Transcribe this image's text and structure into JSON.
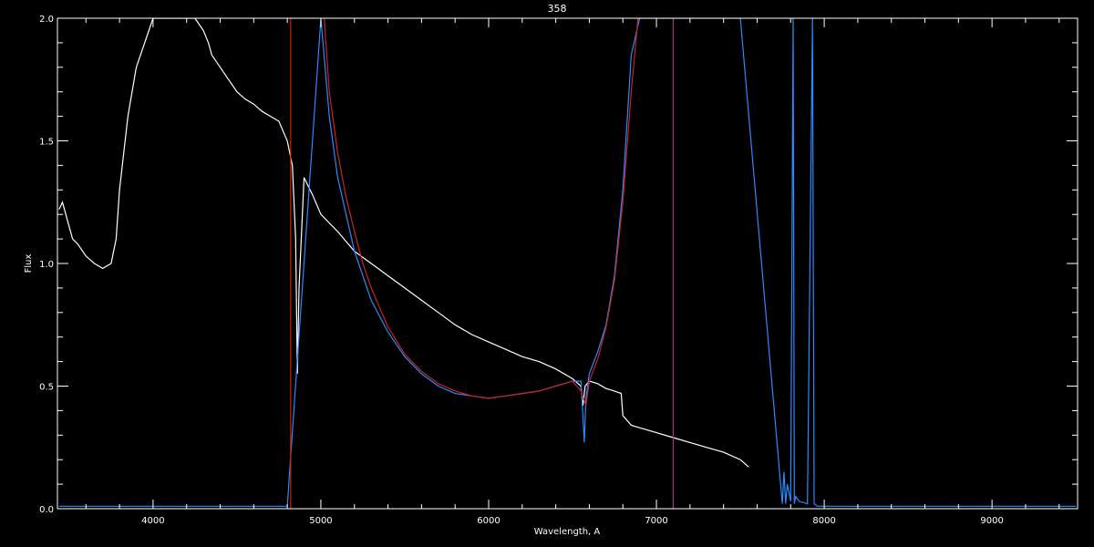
{
  "chart_data": {
    "type": "line",
    "title": "358",
    "xlabel": "Wavelength, A",
    "ylabel": "Flux",
    "xlim": [
      3430,
      9510
    ],
    "ylim": [
      0.0,
      2.0
    ],
    "xticks": [
      4000,
      5000,
      6000,
      7000,
      8000,
      9000
    ],
    "yticks": [
      0.0,
      0.5,
      1.0,
      1.5,
      2.0
    ],
    "ytick_labels": [
      "0.0",
      "0.5",
      "1.0",
      "1.5",
      "2.0"
    ],
    "grid": false,
    "colors": {
      "background": "#000000",
      "axes": "#ffffff",
      "spectrum": "#ffffff",
      "normalized": "#2a8cff",
      "fit": "#cc2222",
      "left_marker": "#cc2200",
      "right_marker": "#b0307a"
    },
    "vlines": [
      {
        "x": 4820,
        "color": "#cc2200"
      },
      {
        "x": 7100,
        "color": "#b0307a"
      }
    ],
    "series": [
      {
        "x": [
          3440,
          3460,
          3480,
          3500,
          3520,
          3550,
          3600,
          3650,
          3700,
          3750,
          3780,
          3800,
          3850,
          3900,
          3950,
          4000,
          4050,
          4100,
          4150,
          4200,
          4250,
          4300,
          4330,
          4350,
          4400,
          4450,
          4500,
          4550,
          4600,
          4650,
          4700,
          4750,
          4800,
          4830,
          4850,
          4860,
          4870,
          4900,
          4950,
          5000,
          5100,
          5200,
          5300,
          5400,
          5500,
          5600,
          5700,
          5800,
          5900,
          6000,
          6100,
          6200,
          6300,
          6400,
          6500,
          6550,
          6562,
          6575,
          6600,
          6650,
          6700,
          6750,
          6790,
          6800,
          6850,
          6900,
          7000,
          7100,
          7200,
          7300,
          7400,
          7500,
          7550
        ],
        "y": [
          1.22,
          1.25,
          1.2,
          1.15,
          1.1,
          1.08,
          1.03,
          1.0,
          0.98,
          1.0,
          1.1,
          1.3,
          1.6,
          1.8,
          1.9,
          2.0,
          2.0,
          2.0,
          2.0,
          2.0,
          2.0,
          1.95,
          1.9,
          1.85,
          1.8,
          1.75,
          1.7,
          1.67,
          1.65,
          1.62,
          1.6,
          1.58,
          1.5,
          1.4,
          1.1,
          0.55,
          0.9,
          1.35,
          1.28,
          1.2,
          1.13,
          1.05,
          1.0,
          0.95,
          0.9,
          0.85,
          0.8,
          0.75,
          0.71,
          0.68,
          0.65,
          0.62,
          0.6,
          0.57,
          0.53,
          0.5,
          0.42,
          0.5,
          0.52,
          0.51,
          0.49,
          0.48,
          0.47,
          0.38,
          0.34,
          0.33,
          0.31,
          0.29,
          0.27,
          0.25,
          0.23,
          0.2,
          0.17
        ]
      },
      {
        "x": [
          3440,
          3500,
          4000,
          4500,
          4800,
          5000,
          5050,
          5100,
          5150,
          5200,
          5250,
          5300,
          5400,
          5500,
          5600,
          5700,
          5800,
          5900,
          6000,
          6100,
          6200,
          6300,
          6400,
          6500,
          6550,
          6560,
          6570,
          6580,
          6600,
          6650,
          6700,
          6750,
          6800,
          6850,
          6900,
          6950,
          7000,
          7050,
          7500,
          7750,
          7760,
          7770,
          7780,
          7800,
          7815,
          7822,
          7830,
          7850,
          7900,
          7930,
          7940,
          7960,
          8000,
          8500,
          9000,
          9500
        ],
        "y": [
          0.01,
          0.01,
          0.01,
          0.01,
          0.01,
          2.0,
          1.6,
          1.35,
          1.2,
          1.05,
          0.95,
          0.85,
          0.72,
          0.62,
          0.55,
          0.5,
          0.47,
          0.46,
          0.45,
          0.46,
          0.47,
          0.48,
          0.5,
          0.52,
          0.52,
          0.4,
          0.27,
          0.45,
          0.55,
          0.64,
          0.75,
          0.95,
          1.3,
          1.85,
          2.0,
          2.0,
          2.0,
          2.0,
          2.0,
          0.02,
          0.15,
          0.02,
          0.1,
          0.03,
          2.0,
          0.02,
          0.05,
          0.03,
          0.02,
          2.0,
          0.02,
          0.01,
          0.01,
          0.01,
          0.01,
          0.01
        ]
      },
      {
        "x": [
          5020,
          5050,
          5100,
          5150,
          5200,
          5250,
          5300,
          5400,
          5500,
          5600,
          5700,
          5800,
          5900,
          6000,
          6100,
          6200,
          6300,
          6400,
          6500,
          6550,
          6580,
          6600,
          6650,
          6700,
          6750,
          6800,
          6850,
          6890
        ],
        "y": [
          2.0,
          1.7,
          1.45,
          1.27,
          1.13,
          1.0,
          0.9,
          0.74,
          0.63,
          0.56,
          0.51,
          0.48,
          0.46,
          0.45,
          0.46,
          0.47,
          0.48,
          0.5,
          0.52,
          0.48,
          0.42,
          0.52,
          0.61,
          0.74,
          0.93,
          1.25,
          1.7,
          2.0
        ]
      }
    ]
  }
}
